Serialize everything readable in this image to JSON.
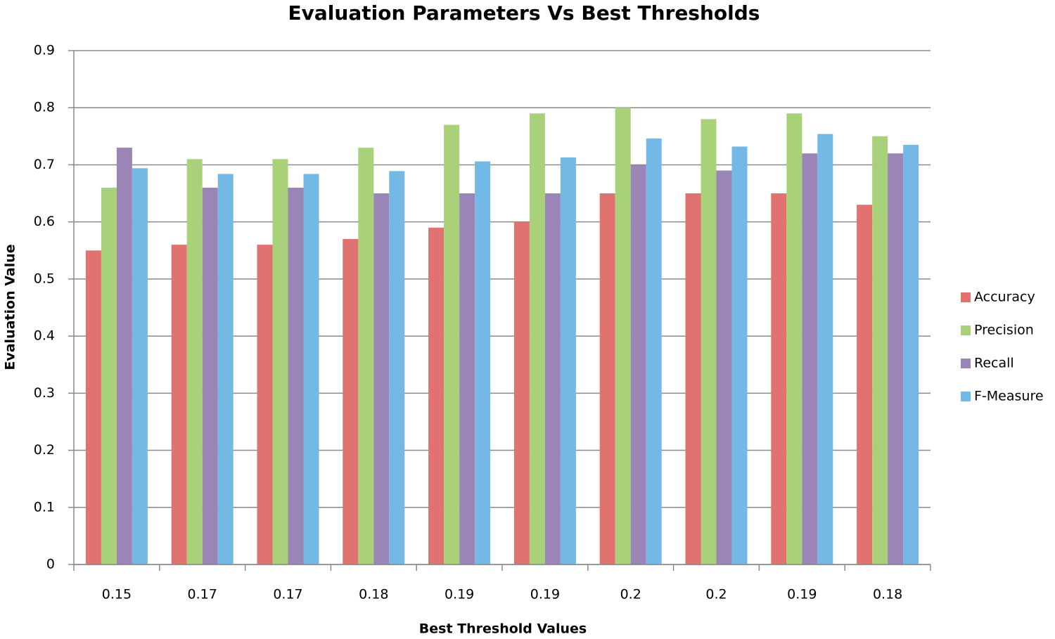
{
  "chart_data": {
    "type": "bar",
    "title": "Evaluation Parameters Vs Best Thresholds",
    "x_label": "Best Threshold Values",
    "y_label": "Evaluation Value",
    "categories": [
      "0.15",
      "0.17",
      "0.17",
      "0.18",
      "0.19",
      "0.19",
      "0.2",
      "0.2",
      "0.19",
      "0.18"
    ],
    "series": [
      {
        "name": "Accuracy",
        "color": "#e07370",
        "values": [
          0.55,
          0.56,
          0.56,
          0.57,
          0.59,
          0.6,
          0.65,
          0.65,
          0.65,
          0.63
        ]
      },
      {
        "name": "Precision",
        "color": "#a8d17a",
        "values": [
          0.66,
          0.71,
          0.71,
          0.73,
          0.77,
          0.79,
          0.8,
          0.78,
          0.79,
          0.75
        ]
      },
      {
        "name": "Recall",
        "color": "#9a85b6",
        "values": [
          0.73,
          0.66,
          0.66,
          0.65,
          0.65,
          0.65,
          0.7,
          0.69,
          0.72,
          0.72
        ]
      },
      {
        "name": "F-Measure",
        "color": "#74b9e6",
        "values": [
          0.694,
          0.684,
          0.684,
          0.689,
          0.706,
          0.713,
          0.746,
          0.732,
          0.754,
          0.735
        ]
      }
    ],
    "ylim": [
      0,
      0.9
    ],
    "yticks": [
      0,
      0.1,
      0.2,
      0.3,
      0.4,
      0.5,
      0.6,
      0.7,
      0.8,
      0.9
    ],
    "grid": true,
    "legend": "right"
  }
}
